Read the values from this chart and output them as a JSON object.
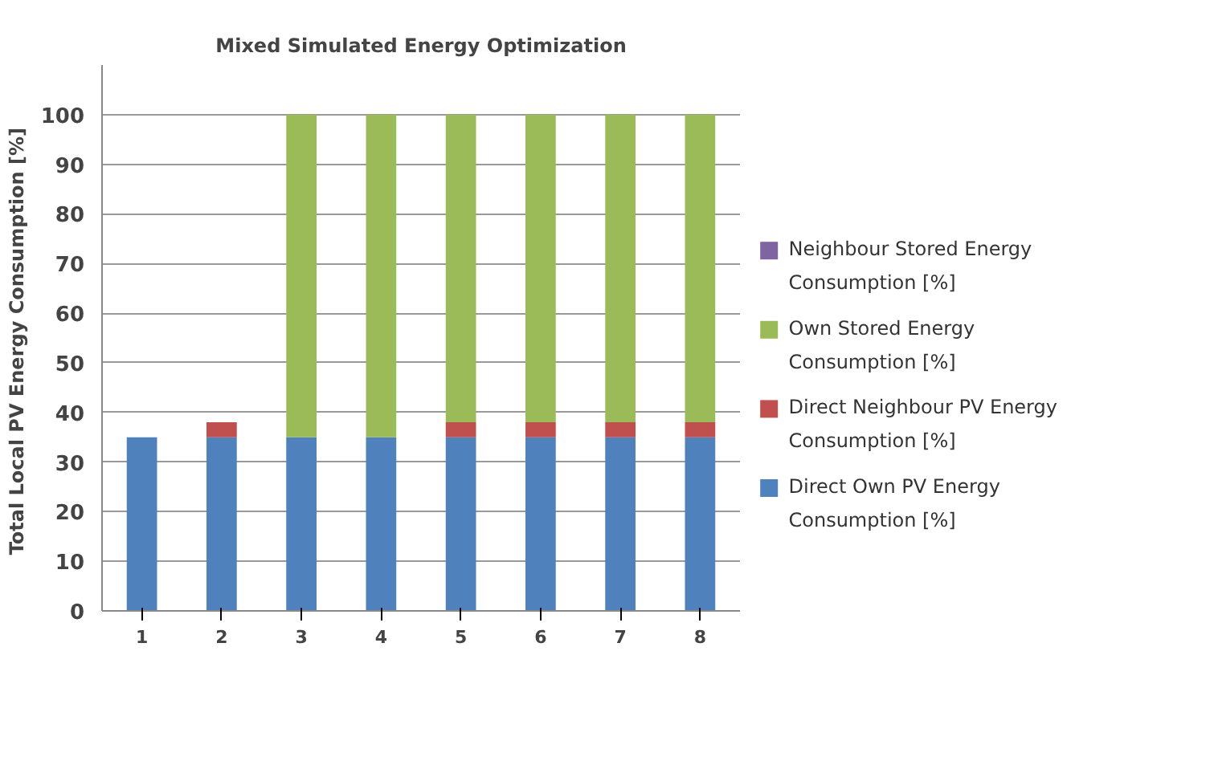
{
  "chart_data": {
    "type": "bar",
    "stacked": true,
    "title": "Mixed Simulated Energy Optimization",
    "ylabel": "Total Local PV Energy Consumption  [%]",
    "categories": [
      "1",
      "2",
      "3",
      "4",
      "5",
      "6",
      "7",
      "8"
    ],
    "series": [
      {
        "name": "Direct Own PV Energy Consumption [%]",
        "color": "#4f81bd",
        "values": [
          35,
          35,
          35,
          35,
          35,
          35,
          35,
          35
        ]
      },
      {
        "name": "Direct Neighbour PV Energy Consumption [%]",
        "color": "#c0504d",
        "values": [
          0,
          3,
          0,
          0,
          3,
          3,
          3,
          3
        ]
      },
      {
        "name": "Own Stored Energy Consumption [%]",
        "color": "#9bbb59",
        "values": [
          0,
          0,
          65,
          65,
          62,
          62,
          62,
          62
        ]
      },
      {
        "name": "Neighbour Stored Energy Consumption [%]",
        "color": "#8064a2",
        "values": [
          0,
          0,
          0,
          0,
          0,
          0,
          0,
          0
        ]
      }
    ],
    "ylim": [
      0,
      110
    ],
    "yticks": [
      0,
      10,
      20,
      30,
      40,
      50,
      60,
      70,
      80,
      90,
      100
    ],
    "grid": "y",
    "legend": "right"
  }
}
